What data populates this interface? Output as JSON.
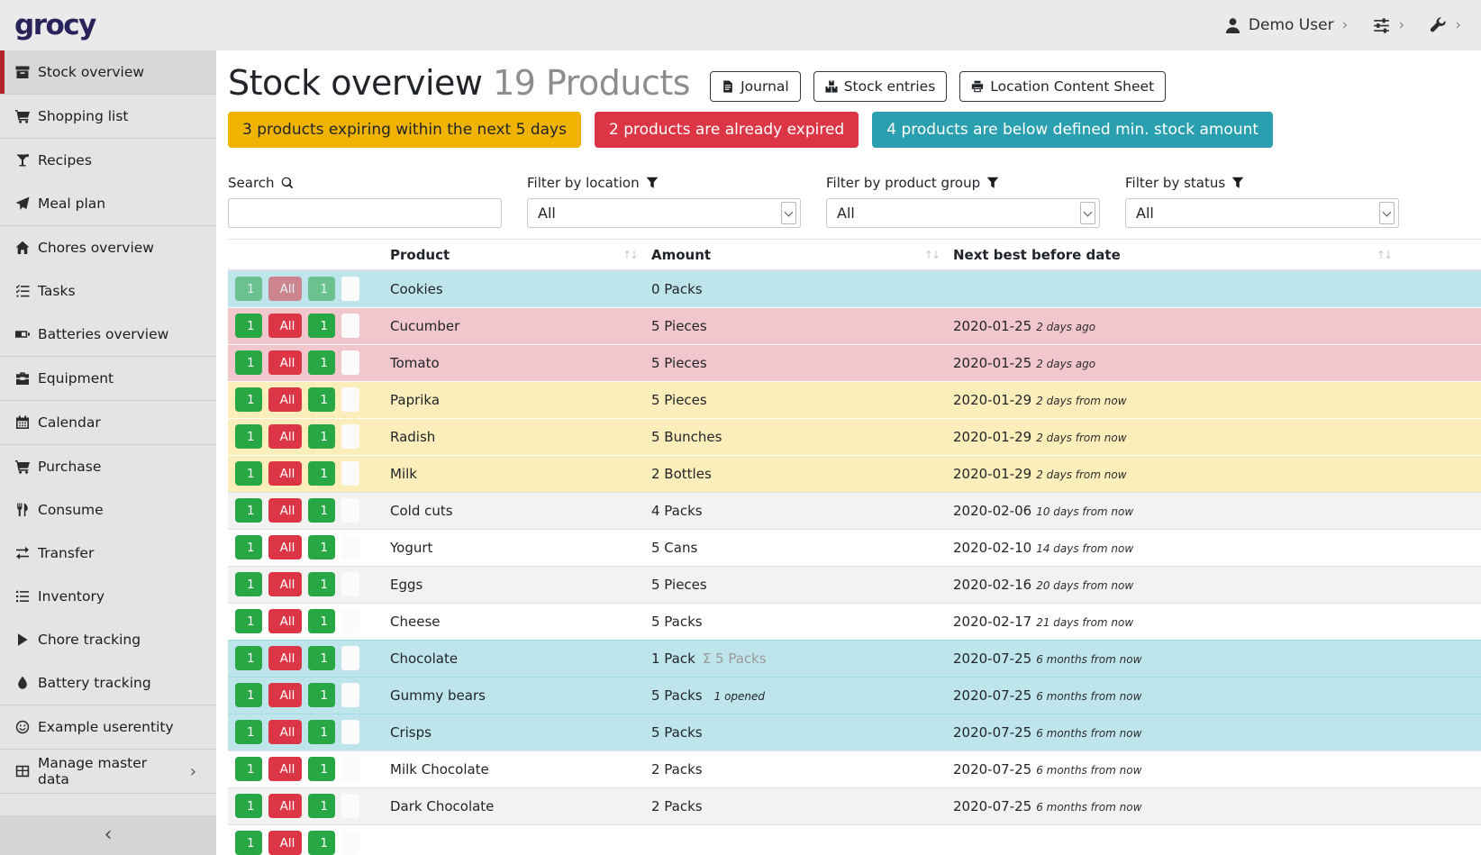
{
  "navbar": {
    "logo": "grocy",
    "user_label": "Demo User"
  },
  "sidebar": {
    "items": [
      {
        "label": "Stock overview",
        "icon": "box-icon",
        "active": true
      },
      {
        "label": "Shopping list",
        "icon": "shopping-cart-icon",
        "divider_before": true
      },
      {
        "label": "Recipes",
        "icon": "cocktail-icon",
        "divider_before": true
      },
      {
        "label": "Meal plan",
        "icon": "paper-plane-icon"
      },
      {
        "label": "Chores overview",
        "icon": "home-icon",
        "divider_before": true
      },
      {
        "label": "Tasks",
        "icon": "tasks-icon"
      },
      {
        "label": "Batteries overview",
        "icon": "battery-icon"
      },
      {
        "label": "Equipment",
        "icon": "toolbox-icon",
        "divider_before": true
      },
      {
        "label": "Calendar",
        "icon": "calendar-icon",
        "divider_before": true
      },
      {
        "label": "Purchase",
        "icon": "shopping-cart-icon",
        "divider_before": true
      },
      {
        "label": "Consume",
        "icon": "utensils-icon"
      },
      {
        "label": "Transfer",
        "icon": "exchange-icon"
      },
      {
        "label": "Inventory",
        "icon": "list-icon"
      },
      {
        "label": "Chore tracking",
        "icon": "play-icon"
      },
      {
        "label": "Battery tracking",
        "icon": "droplet-icon"
      },
      {
        "label": "Example userentity",
        "icon": "smile-icon",
        "divider_before": true
      },
      {
        "label": "Manage master data",
        "icon": "table-icon",
        "divider_before": true,
        "has_submenu": true
      }
    ]
  },
  "header": {
    "title": "Stock overview",
    "subtitle": "19 Products",
    "buttons": [
      {
        "label": "Journal",
        "icon": "journal-icon"
      },
      {
        "label": "Stock entries",
        "icon": "boxes-icon"
      },
      {
        "label": "Location Content Sheet",
        "icon": "print-icon"
      }
    ]
  },
  "alerts": [
    {
      "label": "3 products expiring within the next 5 days",
      "type": "warning"
    },
    {
      "label": "2 products are already expired",
      "type": "danger"
    },
    {
      "label": "4 products are below defined min. stock amount",
      "type": "info"
    }
  ],
  "filters": {
    "search_label": "Search",
    "location_label": "Filter by location",
    "product_group_label": "Filter by product group",
    "status_label": "Filter by status",
    "location_value": "All",
    "product_group_value": "All",
    "status_value": "All"
  },
  "table": {
    "columns": [
      "Product",
      "Amount",
      "Next best before date"
    ],
    "row_actions": {
      "consume_one": "1",
      "consume_all": "All",
      "open_one": "1"
    },
    "rows": [
      {
        "product": "Cookies",
        "amount": "0 Packs",
        "amount_sum": "",
        "amount_note": "",
        "date": "",
        "timeago": "",
        "variant": "info",
        "disabled": true
      },
      {
        "product": "Cucumber",
        "amount": "5 Pieces",
        "amount_sum": "",
        "amount_note": "",
        "date": "2020-01-25",
        "timeago": "2 days ago",
        "variant": "danger"
      },
      {
        "product": "Tomato",
        "amount": "5 Pieces",
        "amount_sum": "",
        "amount_note": "",
        "date": "2020-01-25",
        "timeago": "2 days ago",
        "variant": "danger"
      },
      {
        "product": "Paprika",
        "amount": "5 Pieces",
        "amount_sum": "",
        "amount_note": "",
        "date": "2020-01-29",
        "timeago": "2 days from now",
        "variant": "warning"
      },
      {
        "product": "Radish",
        "amount": "5 Bunches",
        "amount_sum": "",
        "amount_note": "",
        "date": "2020-01-29",
        "timeago": "2 days from now",
        "variant": "warning"
      },
      {
        "product": "Milk",
        "amount": "2 Bottles",
        "amount_sum": "",
        "amount_note": "",
        "date": "2020-01-29",
        "timeago": "2 days from now",
        "variant": "warning"
      },
      {
        "product": "Cold cuts",
        "amount": "4 Packs",
        "amount_sum": "",
        "amount_note": "",
        "date": "2020-02-06",
        "timeago": "10 days from now",
        "variant": "stripe"
      },
      {
        "product": "Yogurt",
        "amount": "5 Cans",
        "amount_sum": "",
        "amount_note": "",
        "date": "2020-02-10",
        "timeago": "14 days from now",
        "variant": "white"
      },
      {
        "product": "Eggs",
        "amount": "5 Pieces",
        "amount_sum": "",
        "amount_note": "",
        "date": "2020-02-16",
        "timeago": "20 days from now",
        "variant": "stripe"
      },
      {
        "product": "Cheese",
        "amount": "5 Packs",
        "amount_sum": "",
        "amount_note": "",
        "date": "2020-02-17",
        "timeago": "21 days from now",
        "variant": "white"
      },
      {
        "product": "Chocolate",
        "amount": "1 Pack",
        "amount_sum": "Σ 5 Packs",
        "amount_note": "",
        "date": "2020-07-25",
        "timeago": "6 months from now",
        "variant": "info"
      },
      {
        "product": "Gummy bears",
        "amount": "5 Packs",
        "amount_sum": "",
        "amount_note": "1 opened",
        "date": "2020-07-25",
        "timeago": "6 months from now",
        "variant": "info"
      },
      {
        "product": "Crisps",
        "amount": "5 Packs",
        "amount_sum": "",
        "amount_note": "",
        "date": "2020-07-25",
        "timeago": "6 months from now",
        "variant": "info"
      },
      {
        "product": "Milk Chocolate",
        "amount": "2 Packs",
        "amount_sum": "",
        "amount_note": "",
        "date": "2020-07-25",
        "timeago": "6 months from now",
        "variant": "white"
      },
      {
        "product": "Dark Chocolate",
        "amount": "2 Packs",
        "amount_sum": "",
        "amount_note": "",
        "date": "2020-07-25",
        "timeago": "6 months from now",
        "variant": "stripe"
      },
      {
        "product": "",
        "amount": "",
        "amount_sum": "",
        "amount_note": "",
        "date": "",
        "timeago": "",
        "variant": "white"
      }
    ]
  },
  "colors": {
    "brand_logo": "#29235c",
    "sidebar_accent_red": "#b5232d",
    "success_green": "#28a745",
    "danger_red": "#dc3545",
    "warning_yellow": "#f0b400",
    "info_teal": "#2a9fb0",
    "row_info": "#bee5eb",
    "row_danger": "#f2c6cd",
    "row_warning": "#fceeba",
    "row_stripe": "#f2f2f2"
  }
}
